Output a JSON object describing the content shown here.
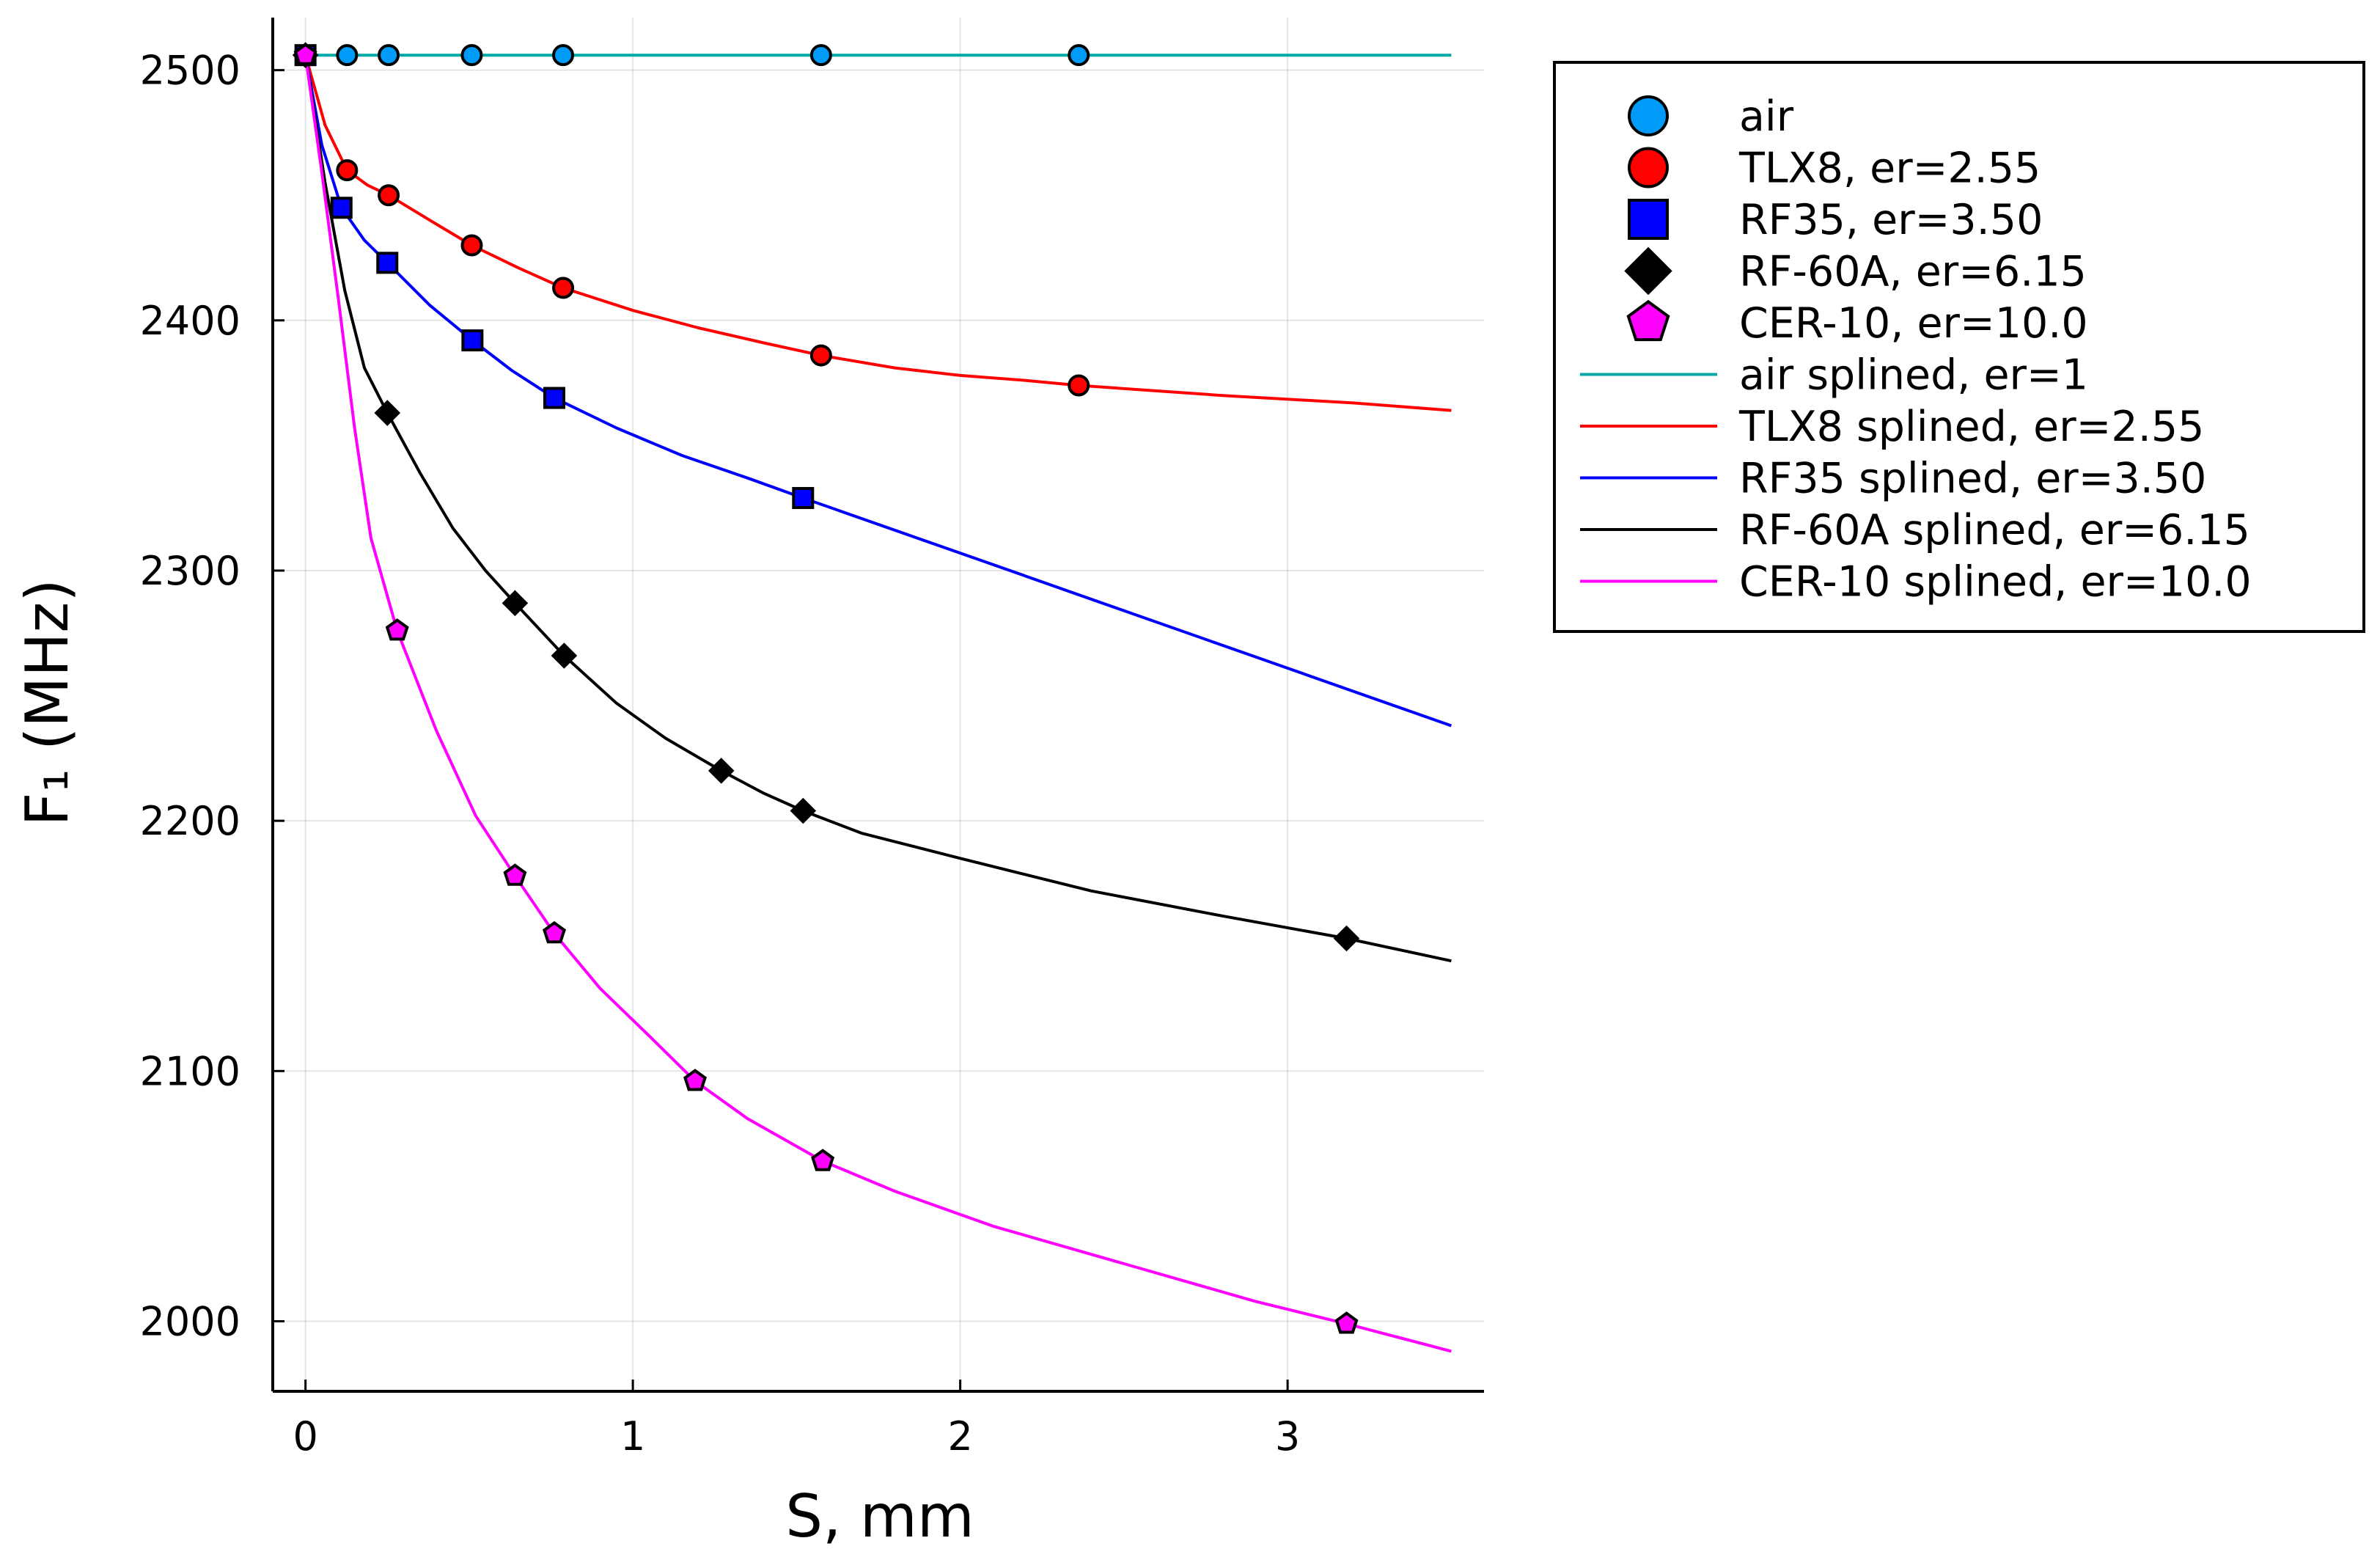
{
  "chart_data": {
    "type": "scatter",
    "title": "",
    "xlabel": "S, mm",
    "ylabel": "F₁ (MHz)",
    "xlim": [
      -0.1,
      3.6
    ],
    "ylim": [
      1972,
      2521
    ],
    "xticks": [
      0,
      1,
      2,
      3
    ],
    "yticks": [
      2000,
      2100,
      2200,
      2300,
      2400,
      2500
    ],
    "grid": true,
    "legend_position": "outside-top-right",
    "series": [
      {
        "name": "air",
        "kind": "markers",
        "marker": "circle",
        "color": "#009af9",
        "x": [
          0,
          0.127,
          0.254,
          0.508,
          0.787,
          1.575,
          2.362
        ],
        "y": [
          2506,
          2506,
          2506,
          2506,
          2506,
          2506,
          2506
        ]
      },
      {
        "name": "TLX8, er=2.55",
        "kind": "markers",
        "marker": "circle",
        "color": "#ff0000",
        "x": [
          0,
          0.127,
          0.254,
          0.508,
          0.787,
          1.575,
          2.362
        ],
        "y": [
          2506,
          2460,
          2450,
          2430,
          2413,
          2386,
          2374
        ]
      },
      {
        "name": "RF35, er=3.50",
        "kind": "markers",
        "marker": "square",
        "color": "#0000ff",
        "x": [
          0,
          0.11,
          0.25,
          0.51,
          0.76,
          1.52
        ],
        "y": [
          2506,
          2445,
          2423,
          2392,
          2369,
          2329
        ]
      },
      {
        "name": "RF-60A, er=6.15",
        "kind": "markers",
        "marker": "diamond",
        "color": "#000000",
        "x": [
          0,
          0.25,
          0.64,
          0.79,
          1.27,
          1.52,
          3.18
        ],
        "y": [
          2506,
          2363,
          2287,
          2266,
          2220,
          2204,
          2153
        ]
      },
      {
        "name": "CER-10, er=10.0",
        "kind": "markers",
        "marker": "pentagon",
        "color": "#ff00ff",
        "x": [
          0,
          0.28,
          0.64,
          0.76,
          1.19,
          1.58,
          3.18
        ],
        "y": [
          2506,
          2276,
          2178,
          2155,
          2096,
          2064,
          1999
        ]
      },
      {
        "name": "air splined, er=1",
        "kind": "line",
        "color": "#00a8a8",
        "x": [
          0,
          3.5
        ],
        "y": [
          2506,
          2506
        ]
      },
      {
        "name": "TLX8 splined, er=2.55",
        "kind": "line",
        "color": "#ff0000",
        "x": [
          0,
          0.06,
          0.127,
          0.19,
          0.254,
          0.38,
          0.508,
          0.65,
          0.787,
          1.0,
          1.2,
          1.4,
          1.575,
          1.8,
          2.0,
          2.2,
          2.362,
          2.8,
          3.2,
          3.5
        ],
        "y": [
          2506,
          2478,
          2460,
          2454,
          2450,
          2440,
          2430,
          2421,
          2413,
          2404,
          2397,
          2391,
          2386,
          2381,
          2378,
          2376,
          2374,
          2370,
          2367,
          2364
        ]
      },
      {
        "name": "RF35 splined, er=3.50",
        "kind": "line",
        "color": "#0000ff",
        "x": [
          0,
          0.05,
          0.11,
          0.18,
          0.25,
          0.38,
          0.51,
          0.63,
          0.76,
          0.95,
          1.15,
          1.35,
          1.52,
          2.0,
          2.5,
          3.0,
          3.5
        ],
        "y": [
          2506,
          2470,
          2445,
          2432,
          2423,
          2406,
          2392,
          2380,
          2369,
          2357,
          2346,
          2337,
          2329,
          2307,
          2284,
          2261,
          2238
        ]
      },
      {
        "name": "RF-60A splined, er=6.15",
        "kind": "line",
        "color": "#000000",
        "x": [
          0,
          0.06,
          0.12,
          0.18,
          0.25,
          0.35,
          0.45,
          0.55,
          0.64,
          0.79,
          0.95,
          1.1,
          1.27,
          1.4,
          1.52,
          1.7,
          2.0,
          2.4,
          2.8,
          3.18,
          3.5
        ],
        "y": [
          2506,
          2455,
          2412,
          2381,
          2363,
          2339,
          2317,
          2300,
          2287,
          2266,
          2247,
          2233,
          2220,
          2211,
          2204,
          2195,
          2185,
          2172,
          2162,
          2153,
          2144
        ]
      },
      {
        "name": "CER-10 splined, er=10.0",
        "kind": "line",
        "color": "#ff00ff",
        "x": [
          0,
          0.05,
          0.1,
          0.15,
          0.2,
          0.28,
          0.4,
          0.52,
          0.64,
          0.76,
          0.9,
          1.05,
          1.19,
          1.35,
          1.58,
          1.8,
          2.1,
          2.5,
          2.9,
          3.18,
          3.5
        ],
        "y": [
          2506,
          2459,
          2409,
          2357,
          2313,
          2276,
          2236,
          2202,
          2178,
          2155,
          2133,
          2114,
          2096,
          2081,
          2064,
          2052,
          2038,
          2023,
          2008,
          1999,
          1988
        ]
      }
    ]
  }
}
